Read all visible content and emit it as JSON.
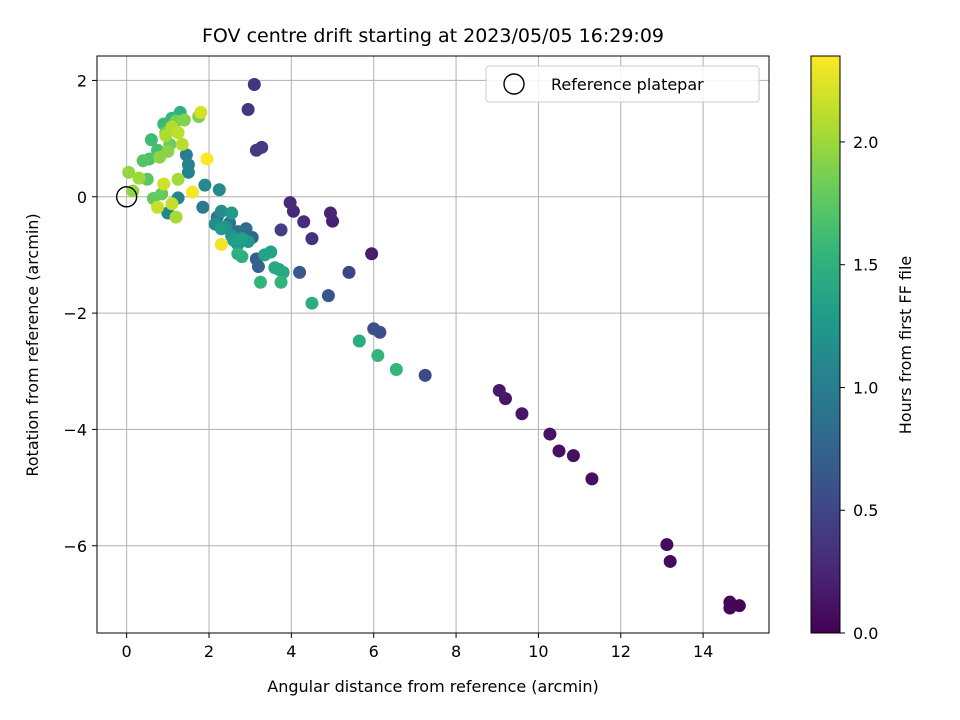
{
  "chart_data": {
    "type": "scatter",
    "title": "FOV centre drift starting at 2023/05/05 16:29:09",
    "xlabel": "Angular distance from reference (arcmin)",
    "ylabel": "Rotation from reference (arcmin)",
    "xlim": [
      -0.72,
      15.6
    ],
    "ylim": [
      -7.5,
      2.42
    ],
    "xticks": [
      0,
      2,
      4,
      6,
      8,
      10,
      12,
      14
    ],
    "yticks": [
      2,
      0,
      -2,
      -4,
      -6
    ],
    "xtick_labels": [
      "0",
      "2",
      "4",
      "6",
      "8",
      "10",
      "12",
      "14"
    ],
    "ytick_labels": [
      "2",
      "0",
      "−2",
      "−4",
      "−6"
    ],
    "grid": true,
    "colormap": "viridis",
    "colorbar": {
      "label": "Hours from first FF file",
      "range": [
        0.0,
        2.35
      ],
      "ticks": [
        0.0,
        0.5,
        1.0,
        1.5,
        2.0
      ],
      "tick_labels": [
        "0.0",
        "0.5",
        "1.0",
        "1.5",
        "2.0"
      ]
    },
    "legend": {
      "position": "top-right",
      "entries": [
        {
          "label": "Reference platepar",
          "marker": "open-circle"
        }
      ]
    },
    "reference_point": {
      "x": 0,
      "y": 0
    },
    "points": [
      {
        "x": 14.65,
        "y": -6.97,
        "c": 0.02
      },
      {
        "x": 14.88,
        "y": -7.03,
        "c": 0.03
      },
      {
        "x": 14.65,
        "y": -7.07,
        "c": 0.04
      },
      {
        "x": 13.2,
        "y": -6.27,
        "c": 0.06
      },
      {
        "x": 13.12,
        "y": -5.98,
        "c": 0.07
      },
      {
        "x": 11.3,
        "y": -4.85,
        "c": 0.09
      },
      {
        "x": 10.85,
        "y": -4.45,
        "c": 0.1
      },
      {
        "x": 10.5,
        "y": -4.37,
        "c": 0.11
      },
      {
        "x": 10.28,
        "y": -4.08,
        "c": 0.12
      },
      {
        "x": 9.6,
        "y": -3.73,
        "c": 0.14
      },
      {
        "x": 9.2,
        "y": -3.47,
        "c": 0.15
      },
      {
        "x": 9.05,
        "y": -3.33,
        "c": 0.16
      },
      {
        "x": 5.95,
        "y": -0.98,
        "c": 0.18
      },
      {
        "x": 5.0,
        "y": -0.42,
        "c": 0.22
      },
      {
        "x": 4.95,
        "y": -0.28,
        "c": 0.24
      },
      {
        "x": 4.05,
        "y": -0.25,
        "c": 0.26
      },
      {
        "x": 3.97,
        "y": -0.1,
        "c": 0.28
      },
      {
        "x": 4.3,
        "y": -0.43,
        "c": 0.3
      },
      {
        "x": 4.5,
        "y": -0.72,
        "c": 0.33
      },
      {
        "x": 3.1,
        "y": 1.93,
        "c": 0.36
      },
      {
        "x": 2.95,
        "y": 1.5,
        "c": 0.38
      },
      {
        "x": 3.28,
        "y": 0.85,
        "c": 0.4
      },
      {
        "x": 3.15,
        "y": 0.8,
        "c": 0.41
      },
      {
        "x": 3.75,
        "y": -0.57,
        "c": 0.44
      },
      {
        "x": 5.4,
        "y": -1.3,
        "c": 0.48
      },
      {
        "x": 7.25,
        "y": -3.07,
        "c": 0.52
      },
      {
        "x": 6.15,
        "y": -2.33,
        "c": 0.55
      },
      {
        "x": 6.0,
        "y": -2.27,
        "c": 0.58
      },
      {
        "x": 4.9,
        "y": -1.7,
        "c": 0.62
      },
      {
        "x": 4.2,
        "y": -1.3,
        "c": 0.66
      },
      {
        "x": 3.15,
        "y": -1.07,
        "c": 0.7
      },
      {
        "x": 3.2,
        "y": -1.2,
        "c": 0.74
      },
      {
        "x": 3.05,
        "y": -0.7,
        "c": 0.78
      },
      {
        "x": 2.9,
        "y": -0.55,
        "c": 0.82
      },
      {
        "x": 2.7,
        "y": -0.6,
        "c": 0.86
      },
      {
        "x": 2.5,
        "y": -0.45,
        "c": 0.9
      },
      {
        "x": 2.2,
        "y": -0.35,
        "c": 0.93
      },
      {
        "x": 1.85,
        "y": -0.18,
        "c": 0.96
      },
      {
        "x": 1.45,
        "y": 0.72,
        "c": 0.99
      },
      {
        "x": 1.5,
        "y": 0.55,
        "c": 1.02
      },
      {
        "x": 1.5,
        "y": 0.42,
        "c": 1.04
      },
      {
        "x": 1.25,
        "y": -0.02,
        "c": 1.06
      },
      {
        "x": 1.0,
        "y": -0.28,
        "c": 1.08
      },
      {
        "x": 1.9,
        "y": 0.2,
        "c": 1.1
      },
      {
        "x": 2.25,
        "y": 0.12,
        "c": 1.12
      },
      {
        "x": 2.15,
        "y": -0.47,
        "c": 1.15
      },
      {
        "x": 2.3,
        "y": -0.25,
        "c": 1.17
      },
      {
        "x": 2.4,
        "y": -0.52,
        "c": 1.19
      },
      {
        "x": 2.55,
        "y": -0.67,
        "c": 1.21
      },
      {
        "x": 2.7,
        "y": -0.82,
        "c": 1.23
      },
      {
        "x": 2.95,
        "y": -0.77,
        "c": 1.25
      },
      {
        "x": 2.55,
        "y": -0.28,
        "c": 1.27
      },
      {
        "x": 2.3,
        "y": -0.55,
        "c": 1.29
      },
      {
        "x": 2.6,
        "y": -0.75,
        "c": 1.31
      },
      {
        "x": 2.8,
        "y": -0.72,
        "c": 1.33
      },
      {
        "x": 3.35,
        "y": -1.0,
        "c": 1.35
      },
      {
        "x": 3.5,
        "y": -0.95,
        "c": 1.37
      },
      {
        "x": 3.7,
        "y": -1.25,
        "c": 1.39
      },
      {
        "x": 3.8,
        "y": -1.3,
        "c": 1.41
      },
      {
        "x": 3.6,
        "y": -1.22,
        "c": 1.43
      },
      {
        "x": 5.65,
        "y": -2.48,
        "c": 1.45
      },
      {
        "x": 4.5,
        "y": -1.83,
        "c": 1.47
      },
      {
        "x": 2.7,
        "y": -0.98,
        "c": 1.49
      },
      {
        "x": 2.8,
        "y": -1.03,
        "c": 1.5
      },
      {
        "x": 3.75,
        "y": -1.47,
        "c": 1.52
      },
      {
        "x": 3.25,
        "y": -1.47,
        "c": 1.53
      },
      {
        "x": 6.1,
        "y": -2.73,
        "c": 1.55
      },
      {
        "x": 6.55,
        "y": -2.97,
        "c": 1.56
      },
      {
        "x": 1.3,
        "y": 1.45,
        "c": 1.5
      },
      {
        "x": 1.1,
        "y": 1.35,
        "c": 1.55
      },
      {
        "x": 0.9,
        "y": 1.25,
        "c": 1.6
      },
      {
        "x": 0.6,
        "y": 0.98,
        "c": 1.62
      },
      {
        "x": 0.75,
        "y": 0.8,
        "c": 1.65
      },
      {
        "x": 0.55,
        "y": 0.65,
        "c": 1.68
      },
      {
        "x": 0.4,
        "y": 0.62,
        "c": 1.72
      },
      {
        "x": 0.5,
        "y": 0.3,
        "c": 1.75
      },
      {
        "x": 0.65,
        "y": -0.03,
        "c": 1.78
      },
      {
        "x": 0.85,
        "y": 0.05,
        "c": 1.8
      },
      {
        "x": 1.05,
        "y": 0.9,
        "c": 1.82
      },
      {
        "x": 0.95,
        "y": 1.1,
        "c": 1.84
      },
      {
        "x": 1.2,
        "y": 1.3,
        "c": 1.86
      },
      {
        "x": 1.75,
        "y": 1.38,
        "c": 1.88
      },
      {
        "x": 1.4,
        "y": 1.32,
        "c": 1.9
      },
      {
        "x": 1.0,
        "y": 0.78,
        "c": 1.92
      },
      {
        "x": 0.8,
        "y": 0.68,
        "c": 1.94
      },
      {
        "x": 0.15,
        "y": 0.1,
        "c": 1.96
      },
      {
        "x": 0.05,
        "y": 0.42,
        "c": 1.98
      },
      {
        "x": 0.3,
        "y": 0.32,
        "c": 2.0
      },
      {
        "x": 1.25,
        "y": 0.3,
        "c": 2.02
      },
      {
        "x": 1.2,
        "y": -0.35,
        "c": 2.04
      },
      {
        "x": 0.95,
        "y": 1.05,
        "c": 2.06
      },
      {
        "x": 1.1,
        "y": 1.2,
        "c": 2.08
      },
      {
        "x": 1.35,
        "y": 0.9,
        "c": 2.1
      },
      {
        "x": 1.25,
        "y": 1.1,
        "c": 2.12
      },
      {
        "x": 1.1,
        "y": -0.12,
        "c": 2.14
      },
      {
        "x": 0.75,
        "y": -0.18,
        "c": 2.16
      },
      {
        "x": 0.9,
        "y": 0.22,
        "c": 2.18
      },
      {
        "x": 1.8,
        "y": 1.45,
        "c": 2.2
      },
      {
        "x": 2.3,
        "y": -0.82,
        "c": 2.3
      },
      {
        "x": 1.6,
        "y": 0.08,
        "c": 2.32
      },
      {
        "x": 1.95,
        "y": 0.65,
        "c": 2.34
      }
    ]
  }
}
